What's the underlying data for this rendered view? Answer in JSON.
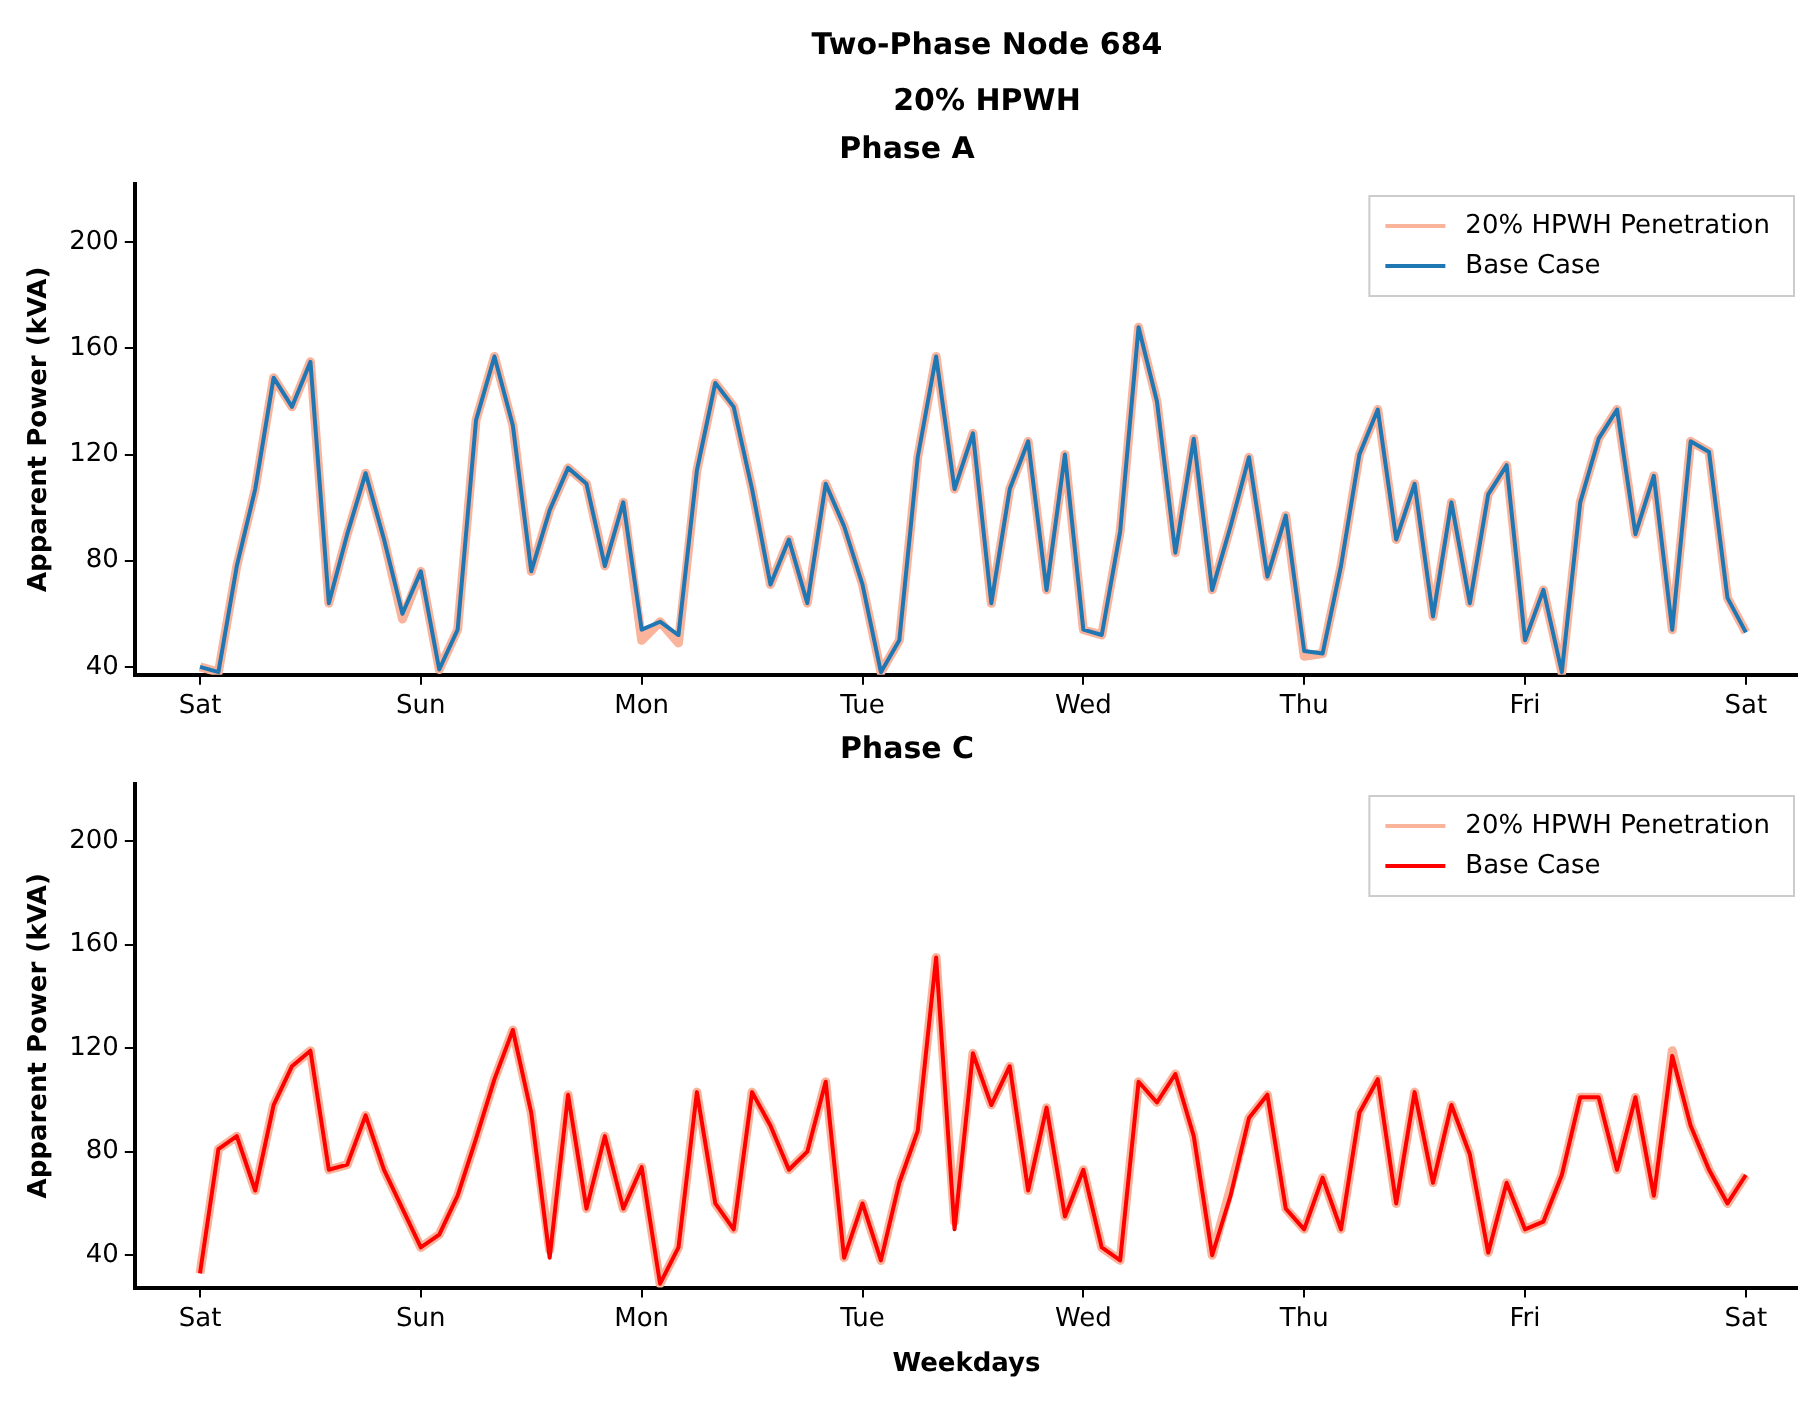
{
  "chart_data": [
    {
      "type": "line",
      "title": "Phase A",
      "annotations": [
        "Two-Phase Node 684",
        "20% HPWH"
      ],
      "ylabel": "Apparent Power (kVA)",
      "legend": "top right",
      "grid": false,
      "categories": [
        "Sat",
        null,
        null,
        null,
        null,
        null,
        null,
        null,
        null,
        null,
        null,
        null,
        "Sun",
        null,
        null,
        null,
        null,
        null,
        null,
        null,
        null,
        null,
        null,
        null,
        "Mon",
        null,
        null,
        null,
        null,
        null,
        null,
        null,
        null,
        null,
        null,
        null,
        "Tue",
        null,
        null,
        null,
        null,
        null,
        null,
        null,
        null,
        null,
        null,
        null,
        "Wed",
        null,
        null,
        null,
        null,
        null,
        null,
        null,
        null,
        null,
        null,
        null,
        "Thu",
        null,
        null,
        null,
        null,
        null,
        null,
        null,
        null,
        null,
        null,
        null,
        "Fri",
        null,
        null,
        null,
        null,
        null,
        null,
        null,
        null,
        null,
        null,
        null,
        "Sat"
      ],
      "ylim": [
        37,
        222
      ],
      "yticks": [
        40,
        80,
        120,
        160,
        200
      ],
      "series": [
        {
          "name": "20% HPWH Penetration",
          "color": "#fbb49c",
          "values": [
            40,
            38,
            78,
            107,
            149,
            138,
            155,
            64,
            90,
            113,
            88,
            58,
            76,
            39,
            54,
            133,
            157,
            131,
            76,
            99,
            115,
            109,
            78,
            102,
            50,
            57,
            49,
            114,
            147,
            138,
            107,
            71,
            88,
            64,
            109,
            93,
            71,
            38,
            50,
            119,
            157,
            107,
            128,
            64,
            107,
            125,
            69,
            120,
            54,
            52,
            91,
            168,
            140,
            83,
            126,
            69,
            93,
            119,
            74,
            97,
            44,
            45,
            78,
            120,
            137,
            88,
            109,
            59,
            102,
            64,
            105,
            116,
            50,
            69,
            38,
            102,
            126,
            137,
            90,
            112,
            54,
            125,
            121,
            66,
            53
          ]
        },
        {
          "name": "Base Case",
          "color": "#1f77b4",
          "values": [
            40,
            38,
            78,
            107,
            149,
            138,
            155,
            64,
            90,
            113,
            88,
            60,
            76,
            39,
            54,
            133,
            157,
            131,
            76,
            99,
            115,
            109,
            78,
            102,
            54,
            57,
            52,
            114,
            147,
            138,
            107,
            71,
            88,
            64,
            109,
            93,
            71,
            38,
            50,
            119,
            157,
            107,
            128,
            64,
            107,
            125,
            69,
            120,
            54,
            52,
            91,
            168,
            140,
            83,
            126,
            69,
            93,
            119,
            74,
            97,
            46,
            45,
            78,
            120,
            137,
            88,
            109,
            59,
            102,
            64,
            105,
            116,
            50,
            69,
            38,
            102,
            126,
            137,
            90,
            112,
            54,
            125,
            121,
            66,
            53
          ]
        }
      ]
    },
    {
      "type": "line",
      "title": "Phase C",
      "xlabel": "Weekdays",
      "ylabel": "Apparent Power (kVA)",
      "legend": "top right",
      "grid": false,
      "categories": [
        "Sat",
        null,
        null,
        null,
        null,
        null,
        null,
        null,
        null,
        null,
        null,
        null,
        "Sun",
        null,
        null,
        null,
        null,
        null,
        null,
        null,
        null,
        null,
        null,
        null,
        "Mon",
        null,
        null,
        null,
        null,
        null,
        null,
        null,
        null,
        null,
        null,
        null,
        "Tue",
        null,
        null,
        null,
        null,
        null,
        null,
        null,
        null,
        null,
        null,
        null,
        "Wed",
        null,
        null,
        null,
        null,
        null,
        null,
        null,
        null,
        null,
        null,
        null,
        "Thu",
        null,
        null,
        null,
        null,
        null,
        null,
        null,
        null,
        null,
        null,
        null,
        "Fri",
        null,
        null,
        null,
        null,
        null,
        null,
        null,
        null,
        null,
        null,
        null,
        "Sat"
      ],
      "ylim": [
        27.5,
        222
      ],
      "yticks": [
        40,
        80,
        120,
        160,
        200
      ],
      "series": [
        {
          "name": "20% HPWH Penetration",
          "color": "#fbb49c",
          "values": [
            33,
            81,
            86,
            65,
            98,
            113,
            119,
            73,
            75,
            94,
            73,
            58,
            43,
            48,
            63,
            85,
            108,
            127,
            95,
            42,
            102,
            58,
            86,
            58,
            74,
            29,
            43,
            103,
            60,
            50,
            103,
            90,
            73,
            80,
            107,
            39,
            60,
            38,
            68,
            88,
            155,
            53,
            118,
            98,
            113,
            65,
            97,
            55,
            73,
            43,
            38,
            107,
            99,
            110,
            86,
            40,
            66,
            93,
            102,
            58,
            50,
            70,
            50,
            95,
            108,
            60,
            103,
            68,
            98,
            79,
            41,
            68,
            50,
            53,
            71,
            101,
            101,
            73,
            101,
            63,
            119,
            90,
            73,
            60,
            71
          ]
        },
        {
          "name": "Base Case",
          "color": "#ff0000",
          "values": [
            33,
            81,
            86,
            65,
            98,
            113,
            119,
            73,
            75,
            94,
            73,
            58,
            43,
            48,
            63,
            85,
            108,
            127,
            95,
            39,
            102,
            58,
            86,
            58,
            74,
            29,
            43,
            103,
            60,
            50,
            103,
            90,
            73,
            80,
            107,
            39,
            60,
            38,
            68,
            88,
            155,
            50,
            118,
            98,
            113,
            65,
            97,
            55,
            73,
            43,
            38,
            107,
            99,
            110,
            86,
            40,
            63,
            93,
            102,
            58,
            50,
            70,
            50,
            95,
            108,
            60,
            103,
            68,
            98,
            79,
            41,
            68,
            50,
            53,
            71,
            101,
            101,
            73,
            101,
            63,
            117,
            90,
            73,
            60,
            71
          ]
        }
      ]
    }
  ]
}
